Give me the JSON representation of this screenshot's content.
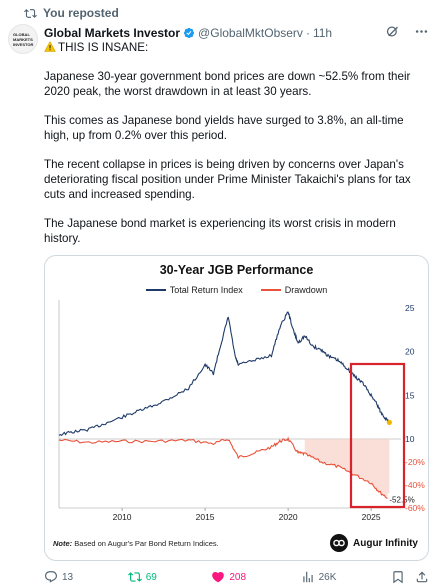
{
  "repost": {
    "label": "You reposted"
  },
  "author": {
    "name": "Global Markets Investor",
    "handle": "@GlobalMktObserv",
    "time": "11h",
    "avatar_text": "GLOBAL MARKETS INVESTOR"
  },
  "tweet": {
    "headline": "THIS IS INSANE:",
    "paragraphs": [
      "Japanese 30-year government bond prices are down ~52.5% from their 2020 peak, the worst drawdown in at least 30 years.",
      "This comes as Japanese bond yields have surged to 3.8%, an all-time high, up from 0.2% over this period.",
      "The recent collapse in prices is being driven by concerns over Japan's deteriorating fiscal position under Prime Minister Takaichi's plans for tax cuts and increased spending.",
      "The Japanese bond market is experiencing its worst crisis in modern history."
    ]
  },
  "chart_data": {
    "type": "line",
    "title": "30-Year JGB Performance",
    "series": [
      {
        "name": "Total Return Index",
        "color": "#1f3a68"
      },
      {
        "name": "Drawdown",
        "color": "#e8523a"
      }
    ],
    "x_ticks": [
      "2010",
      "2015",
      "2020",
      "2025"
    ],
    "xlim": [
      2006.2,
      2026.8
    ],
    "index_axis": {
      "ticks": [
        "25",
        "20",
        "15",
        "10"
      ],
      "values": [
        25,
        20,
        15,
        10
      ],
      "ylim": [
        10,
        25
      ]
    },
    "drawdown_axis": {
      "ticks": [
        "-20%",
        "-40%",
        "-60%"
      ],
      "values": [
        -20,
        -40,
        -60
      ],
      "ylim": [
        -60,
        0
      ]
    },
    "total_return_index": {
      "x": [
        2006.2,
        2007,
        2008,
        2009,
        2010,
        2011,
        2012,
        2013,
        2014,
        2015,
        2015.5,
        2016,
        2016.4,
        2016.8,
        2017,
        2018,
        2019,
        2019.5,
        2020.0,
        2020.3,
        2020.6,
        2021,
        2021.5,
        2022,
        2022.5,
        2023,
        2023.5,
        2024,
        2024.5,
        2025,
        2025.3,
        2025.6,
        2025.9,
        2026.1
      ],
      "y": [
        10.5,
        10.8,
        11.1,
        11.8,
        12.5,
        13.2,
        13.9,
        14.8,
        15.8,
        18.5,
        17.5,
        21.2,
        24.0,
        19.5,
        18.5,
        19.0,
        19.6,
        22.8,
        24.6,
        22.5,
        21.0,
        21.8,
        20.6,
        20.2,
        19.4,
        19.0,
        18.2,
        17.2,
        16.4,
        15.0,
        14.2,
        13.0,
        12.3,
        11.9
      ]
    },
    "drawdown": {
      "x": [
        2006.2,
        2008,
        2010,
        2012,
        2014,
        2015.5,
        2016.4,
        2017,
        2018,
        2019,
        2019.5,
        2020.0,
        2020.6,
        2021,
        2022,
        2023,
        2024,
        2025,
        2025.5,
        2026.1
      ],
      "y": [
        -1,
        -3,
        -2,
        -2,
        -1,
        -4,
        0,
        -16,
        -12,
        -7,
        -2,
        0,
        -12,
        -13,
        -20,
        -24,
        -31,
        -38,
        -46,
        -52.5
      ]
    },
    "annotation": {
      "label": "-52.5%"
    }
  },
  "card": {
    "note_prefix": "Note:",
    "note_text": "Based on Augur's Par Bond Return Indices.",
    "brand": "Augur Infinity"
  },
  "actions": {
    "replies": "13",
    "reposts": "69",
    "likes": "208",
    "views": "26K"
  }
}
